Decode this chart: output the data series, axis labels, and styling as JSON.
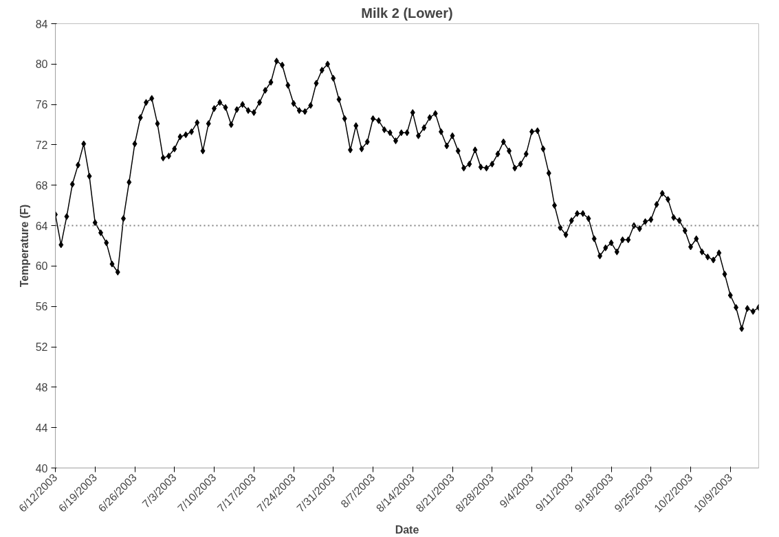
{
  "chart_data": {
    "type": "line",
    "title": "Milk 2 (Lower)",
    "xlabel": "Date",
    "ylabel": "Temperature (F)",
    "x": [
      "2003-06-12",
      "2003-06-13",
      "2003-06-14",
      "2003-06-15",
      "2003-06-16",
      "2003-06-17",
      "2003-06-18",
      "2003-06-19",
      "2003-06-20",
      "2003-06-21",
      "2003-06-22",
      "2003-06-23",
      "2003-06-24",
      "2003-06-25",
      "2003-06-26",
      "2003-06-27",
      "2003-06-28",
      "2003-06-29",
      "2003-06-30",
      "2003-07-01",
      "2003-07-02",
      "2003-07-03",
      "2003-07-04",
      "2003-07-05",
      "2003-07-06",
      "2003-07-07",
      "2003-07-08",
      "2003-07-09",
      "2003-07-10",
      "2003-07-11",
      "2003-07-12",
      "2003-07-13",
      "2003-07-14",
      "2003-07-15",
      "2003-07-16",
      "2003-07-17",
      "2003-07-18",
      "2003-07-19",
      "2003-07-20",
      "2003-07-21",
      "2003-07-22",
      "2003-07-23",
      "2003-07-24",
      "2003-07-25",
      "2003-07-26",
      "2003-07-27",
      "2003-07-28",
      "2003-07-29",
      "2003-07-30",
      "2003-07-31",
      "2003-08-01",
      "2003-08-02",
      "2003-08-03",
      "2003-08-04",
      "2003-08-05",
      "2003-08-06",
      "2003-08-07",
      "2003-08-08",
      "2003-08-09",
      "2003-08-10",
      "2003-08-11",
      "2003-08-12",
      "2003-08-13",
      "2003-08-14",
      "2003-08-15",
      "2003-08-16",
      "2003-08-17",
      "2003-08-18",
      "2003-08-19",
      "2003-08-20",
      "2003-08-21",
      "2003-08-22",
      "2003-08-23",
      "2003-08-24",
      "2003-08-25",
      "2003-08-26",
      "2003-08-27",
      "2003-08-28",
      "2003-08-29",
      "2003-08-30",
      "2003-08-31",
      "2003-09-01",
      "2003-09-02",
      "2003-09-03",
      "2003-09-04",
      "2003-09-05",
      "2003-09-06",
      "2003-09-07",
      "2003-09-08",
      "2003-09-09",
      "2003-09-10",
      "2003-09-11",
      "2003-09-12",
      "2003-09-13",
      "2003-09-14",
      "2003-09-15",
      "2003-09-16",
      "2003-09-17",
      "2003-09-18",
      "2003-09-19",
      "2003-09-20",
      "2003-09-21",
      "2003-09-22",
      "2003-09-23",
      "2003-09-24",
      "2003-09-25",
      "2003-09-26",
      "2003-09-27",
      "2003-09-28",
      "2003-09-29",
      "2003-09-30",
      "2003-10-01",
      "2003-10-02",
      "2003-10-03",
      "2003-10-04",
      "2003-10-05",
      "2003-10-06",
      "2003-10-07",
      "2003-10-08",
      "2003-10-09",
      "2003-10-10",
      "2003-10-11",
      "2003-10-12",
      "2003-10-13",
      "2003-10-14"
    ],
    "series": [
      {
        "color": "#000000",
        "values": [
          65.1,
          62.1,
          64.9,
          68.1,
          70.0,
          72.1,
          68.9,
          64.3,
          63.3,
          62.3,
          60.2,
          59.4,
          64.7,
          68.3,
          72.1,
          74.7,
          76.2,
          76.6,
          74.1,
          70.7,
          70.9,
          71.6,
          72.8,
          73.0,
          73.3,
          74.2,
          71.4,
          74.1,
          75.6,
          76.2,
          75.7,
          74.0,
          75.5,
          76.0,
          75.4,
          75.2,
          76.2,
          77.4,
          78.2,
          80.3,
          79.9,
          77.9,
          76.1,
          75.4,
          75.3,
          75.9,
          78.1,
          79.4,
          80.0,
          78.6,
          76.5,
          74.6,
          71.5,
          73.9,
          71.6,
          72.3,
          74.6,
          74.4,
          73.5,
          73.2,
          72.4,
          73.2,
          73.2,
          75.2,
          72.9,
          73.7,
          74.7,
          75.1,
          73.3,
          71.9,
          72.9,
          71.4,
          69.7,
          70.1,
          71.5,
          69.8,
          69.7,
          70.1,
          71.1,
          72.3,
          71.4,
          69.7,
          70.1,
          71.1,
          73.3,
          73.4,
          71.6,
          69.2,
          66.0,
          63.8,
          63.1,
          64.5,
          65.2,
          65.2,
          64.7,
          62.7,
          61.0,
          61.8,
          62.3,
          61.4,
          62.6,
          62.6,
          64.0,
          63.7,
          64.4,
          64.6,
          66.1,
          67.2,
          66.6,
          64.8,
          64.5,
          63.5,
          61.9,
          62.7,
          61.4,
          60.9,
          60.6,
          61.3,
          59.2,
          57.1,
          55.9,
          53.8,
          55.8,
          55.5,
          55.9
        ]
      }
    ],
    "xlim": [
      "2003-06-12",
      "2003-10-14"
    ],
    "xticks": [
      {
        "value": "2003-06-12",
        "label": "6/12/2003"
      },
      {
        "value": "2003-06-19",
        "label": "6/19/2003"
      },
      {
        "value": "2003-06-26",
        "label": "6/26/2003"
      },
      {
        "value": "2003-07-03",
        "label": "7/3/2003"
      },
      {
        "value": "2003-07-10",
        "label": "7/10/2003"
      },
      {
        "value": "2003-07-17",
        "label": "7/17/2003"
      },
      {
        "value": "2003-07-24",
        "label": "7/24/2003"
      },
      {
        "value": "2003-07-31",
        "label": "7/31/2003"
      },
      {
        "value": "2003-08-07",
        "label": "8/7/2003"
      },
      {
        "value": "2003-08-14",
        "label": "8/14/2003"
      },
      {
        "value": "2003-08-21",
        "label": "8/21/2003"
      },
      {
        "value": "2003-08-28",
        "label": "8/28/2003"
      },
      {
        "value": "2003-09-04",
        "label": "9/4/2003"
      },
      {
        "value": "2003-09-11",
        "label": "9/11/2003"
      },
      {
        "value": "2003-09-18",
        "label": "9/18/2003"
      },
      {
        "value": "2003-09-25",
        "label": "9/25/2003"
      },
      {
        "value": "2003-10-02",
        "label": "10/2/2003"
      },
      {
        "value": "2003-10-09",
        "label": "10/9/2003"
      }
    ],
    "ylim": [
      40,
      84
    ],
    "yticks": [
      40,
      44,
      48,
      52,
      56,
      60,
      64,
      68,
      72,
      76,
      80,
      84
    ],
    "ref_lines": [
      {
        "axis": "y",
        "value": 64,
        "color": "#808080",
        "line_style": "dotted"
      }
    ],
    "marker": "diamond",
    "line_style": "solid",
    "grid": false
  }
}
